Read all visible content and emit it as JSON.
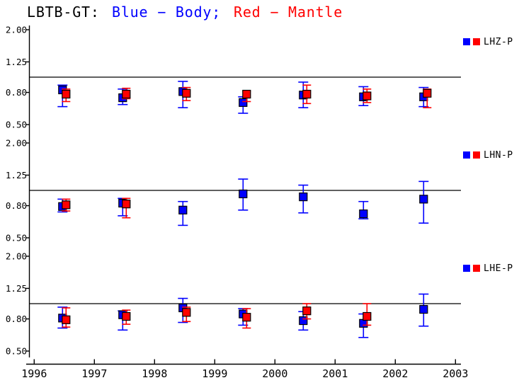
{
  "title": {
    "station": "LBTB-GT:",
    "body_text": "Blue − Body;",
    "mantle_text": "Red − Mantle"
  },
  "colors": {
    "body": "#0000ff",
    "mantle": "#ff0000",
    "axis": "#000000",
    "background": "#ffffff"
  },
  "chart_data": {
    "type": "scatter",
    "title": "LBTB-GT: Blue − Body; Red − Mantle",
    "x_ticks": [
      1996,
      1997,
      1998,
      1999,
      2000,
      2001,
      2002,
      2003
    ],
    "x_range": [
      1996,
      2003
    ],
    "y_scale": "log",
    "y_range": [
      0.5,
      2.0
    ],
    "y_tick_labels": [
      "2.00",
      "1.25",
      "0.80",
      "0.50"
    ],
    "y_tick_values": [
      2.0,
      1.25,
      0.8,
      0.5
    ],
    "reference_line": 1.0,
    "legend_position": "right-of-each-panel",
    "grid": false,
    "series_legend": [
      {
        "name": "Body",
        "color": "#0000ff"
      },
      {
        "name": "Mantle",
        "color": "#ff0000"
      }
    ],
    "point_format": "[year, value, err_low, err_high]",
    "panels": [
      {
        "label": "LHZ-P",
        "series": [
          {
            "name": "Body",
            "color": "#0000ff",
            "points": [
              [
                1996.5,
                0.83,
                0.65,
                0.89
              ],
              [
                1997.5,
                0.74,
                0.67,
                0.84
              ],
              [
                1998.5,
                0.81,
                0.64,
                0.94
              ],
              [
                1999.5,
                0.69,
                0.59,
                0.75
              ],
              [
                2000.5,
                0.77,
                0.64,
                0.93
              ],
              [
                2001.5,
                0.75,
                0.66,
                0.87
              ],
              [
                2002.5,
                0.75,
                0.65,
                0.86
              ]
            ]
          },
          {
            "name": "Mantle",
            "color": "#ff0000",
            "points": [
              [
                1996.5,
                0.78,
                0.7,
                0.84
              ],
              [
                1997.5,
                0.78,
                0.73,
                0.85
              ],
              [
                1998.5,
                0.79,
                0.71,
                0.86
              ],
              [
                1999.5,
                0.78,
                0.7,
                0.81
              ],
              [
                2000.5,
                0.78,
                0.68,
                0.89
              ],
              [
                2001.5,
                0.76,
                0.69,
                0.84
              ],
              [
                2002.5,
                0.79,
                0.64,
                0.84
              ]
            ]
          }
        ]
      },
      {
        "label": "LHN-P",
        "series": [
          {
            "name": "Body",
            "color": "#0000ff",
            "points": [
              [
                1996.5,
                0.79,
                0.73,
                0.88
              ],
              [
                1997.5,
                0.83,
                0.69,
                0.89
              ],
              [
                1998.5,
                0.75,
                0.6,
                0.85
              ],
              [
                1999.5,
                0.95,
                0.75,
                1.18
              ],
              [
                2000.5,
                0.91,
                0.72,
                1.08
              ],
              [
                2001.5,
                0.71,
                0.66,
                0.85
              ],
              [
                2002.5,
                0.88,
                0.62,
                1.14
              ]
            ]
          },
          {
            "name": "Mantle",
            "color": "#ff0000",
            "points": [
              [
                1996.5,
                0.81,
                0.74,
                0.88
              ],
              [
                1997.5,
                0.82,
                0.67,
                0.89
              ]
            ]
          }
        ]
      },
      {
        "label": "LHE-P",
        "series": [
          {
            "name": "Body",
            "color": "#0000ff",
            "points": [
              [
                1996.5,
                0.81,
                0.7,
                0.95
              ],
              [
                1997.5,
                0.85,
                0.68,
                0.9
              ],
              [
                1998.5,
                0.94,
                0.76,
                1.08
              ],
              [
                1999.5,
                0.86,
                0.73,
                0.93
              ],
              [
                2000.5,
                0.78,
                0.68,
                0.89
              ],
              [
                2001.5,
                0.75,
                0.61,
                0.86
              ],
              [
                2002.5,
                0.92,
                0.72,
                1.15
              ]
            ]
          },
          {
            "name": "Mantle",
            "color": "#ff0000",
            "points": [
              [
                1996.5,
                0.79,
                0.71,
                0.94
              ],
              [
                1997.5,
                0.83,
                0.74,
                0.91
              ],
              [
                1998.5,
                0.88,
                0.77,
                0.95
              ],
              [
                1999.5,
                0.82,
                0.7,
                0.93
              ],
              [
                2000.5,
                0.9,
                0.8,
                1.0
              ],
              [
                2001.5,
                0.83,
                0.73,
                1.0
              ]
            ]
          }
        ]
      }
    ]
  }
}
